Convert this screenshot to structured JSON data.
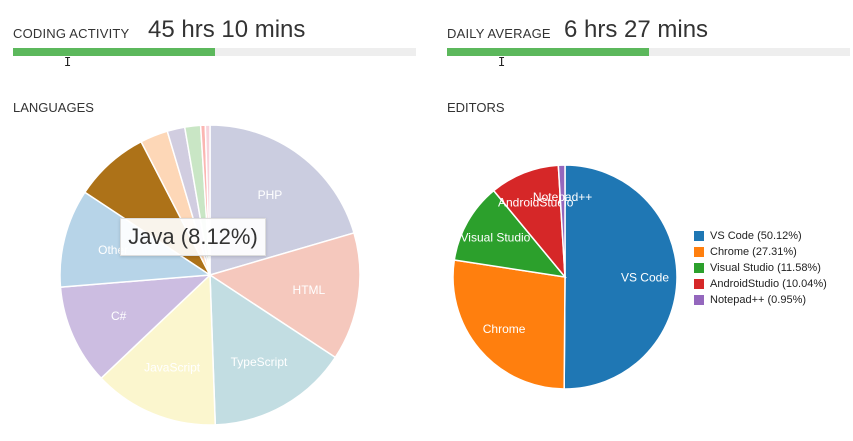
{
  "coding_activity": {
    "label": "CODING ACTIVITY",
    "value": "45 hrs 10 mins",
    "progress_fraction": 0.5
  },
  "daily_average": {
    "label": "DAILY AVERAGE",
    "value": "6 hrs 27 mins",
    "progress_fraction": 0.5
  },
  "languages_title": "LANGUAGES",
  "editors_title": "EDITORS",
  "tooltip": {
    "text": "Java (8.12%)"
  },
  "colors": {
    "progress": "#5cb85c"
  },
  "chart_data": [
    {
      "type": "pie",
      "title": "LANGUAGES",
      "slices": [
        {
          "label": "PHP",
          "value": 20.5,
          "color": "#cbcde0",
          "show_label": true
        },
        {
          "label": "HTML",
          "value": 13.8,
          "color": "#f5c8bd",
          "show_label": true
        },
        {
          "label": "TypeScript",
          "value": 15.2,
          "color": "#c2dde2",
          "show_label": true
        },
        {
          "label": "JavaScript",
          "value": 13.5,
          "color": "#fbf6ce",
          "show_label": true
        },
        {
          "label": "C#",
          "value": 10.8,
          "color": "#ccbde1",
          "show_label": true
        },
        {
          "label": "Other",
          "value": 10.6,
          "color": "#b7d4e8",
          "show_label": true
        },
        {
          "label": "Java",
          "value": 8.12,
          "color": "#ad7218",
          "show_label": false
        },
        {
          "label": "",
          "value": 3.0,
          "color": "#fdd7b7",
          "show_label": false
        },
        {
          "label": "",
          "value": 1.9,
          "color": "#d1cde0",
          "show_label": false
        },
        {
          "label": "",
          "value": 1.7,
          "color": "#c9e6c5",
          "show_label": false
        },
        {
          "label": "",
          "value": 0.5,
          "color": "#fbb6b2",
          "show_label": false
        },
        {
          "label": "",
          "value": 0.5,
          "color": "#f7d3dc",
          "show_label": false
        }
      ]
    },
    {
      "type": "pie",
      "title": "EDITORS",
      "slices": [
        {
          "label": "VS Code",
          "legend": "VS Code (50.12%)",
          "value": 50.12,
          "color": "#1f77b4"
        },
        {
          "label": "Chrome",
          "legend": "Chrome (27.31%)",
          "value": 27.31,
          "color": "#ff7f0e"
        },
        {
          "label": "Visual Studio",
          "legend": "Visual Studio (11.58%)",
          "value": 11.58,
          "color": "#2ca02c"
        },
        {
          "label": "AndroidStudio",
          "legend": "AndroidStudio (10.04%)",
          "value": 10.04,
          "color": "#d62728"
        },
        {
          "label": "Notepad++",
          "legend": "Notepad++ (0.95%)",
          "value": 0.95,
          "color": "#9467bd"
        }
      ],
      "legend_position": "right"
    }
  ]
}
